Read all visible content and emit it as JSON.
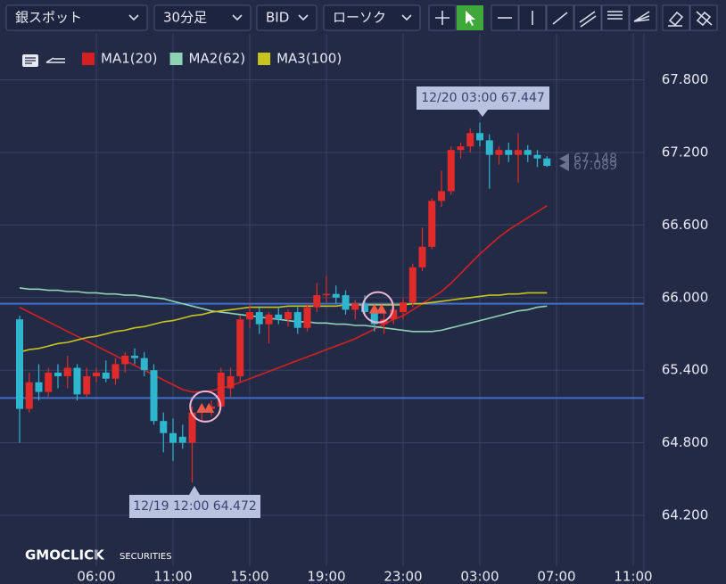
{
  "toolbar": {
    "symbol": "銀スポット",
    "interval": "30分足",
    "side": "BID",
    "chart_style": "ローソク"
  },
  "chart_data": {
    "type": "candlestick",
    "categories": [
      null,
      null,
      null,
      null,
      null,
      null,
      null,
      null,
      "06:00",
      null,
      null,
      null,
      null,
      null,
      null,
      null,
      "11:00",
      null,
      null,
      null,
      null,
      null,
      null,
      null,
      "15:00",
      null,
      null,
      null,
      null,
      null,
      null,
      null,
      "19:00",
      null,
      null,
      null,
      null,
      null,
      null,
      null,
      "23:00",
      null,
      null,
      null,
      null,
      null,
      null,
      null,
      "03:00",
      null,
      null,
      null,
      null,
      null,
      null,
      null,
      "07:00",
      null,
      null,
      null,
      null,
      null,
      null,
      null,
      "11:00"
    ],
    "open": [
      65.82,
      65.08,
      65.3,
      65.22,
      65.38,
      65.35,
      65.42,
      65.2,
      65.35,
      65.38,
      65.33,
      65.45,
      65.52,
      65.5,
      65.4,
      64.98,
      64.88,
      64.85,
      64.8,
      65.05,
      65.08,
      65.1,
      65.25,
      65.35,
      65.82,
      65.88,
      65.78,
      65.86,
      65.82,
      65.88,
      65.75,
      65.92,
      66.02,
      66.03,
      66.02,
      65.9,
      65.95,
      65.88,
      65.78,
      65.82,
      65.88,
      65.96,
      66.25,
      66.42,
      66.8,
      66.88,
      67.22,
      67.25,
      67.36,
      67.3,
      67.18,
      67.22,
      67.18,
      67.22,
      67.18,
      67.15,
      null,
      null,
      null,
      null,
      null,
      null,
      null,
      null,
      null
    ],
    "high": [
      65.85,
      65.38,
      65.45,
      65.42,
      65.45,
      65.52,
      65.45,
      65.42,
      65.42,
      65.48,
      65.5,
      65.55,
      65.58,
      65.55,
      65.45,
      65.05,
      65.0,
      64.95,
      65.1,
      65.12,
      65.15,
      65.42,
      65.42,
      65.85,
      65.95,
      65.92,
      65.88,
      65.92,
      65.9,
      65.92,
      65.95,
      66.12,
      66.18,
      66.1,
      66.06,
      65.98,
      66.02,
      65.95,
      65.9,
      65.95,
      66.0,
      66.28,
      66.58,
      66.82,
      67.05,
      67.25,
      67.28,
      67.4,
      67.447,
      67.35,
      67.25,
      67.28,
      67.36,
      67.26,
      67.22,
      67.17,
      null,
      null,
      null,
      null,
      null,
      null,
      null,
      null,
      null
    ],
    "low": [
      64.8,
      65.05,
      65.15,
      65.18,
      65.25,
      65.25,
      65.15,
      65.18,
      65.3,
      65.3,
      65.28,
      65.38,
      65.45,
      65.35,
      64.95,
      64.72,
      64.65,
      64.75,
      64.472,
      64.98,
      65.02,
      65.08,
      65.18,
      65.3,
      65.75,
      65.7,
      65.62,
      65.78,
      65.76,
      65.7,
      65.72,
      65.88,
      65.96,
      65.95,
      65.86,
      65.82,
      65.85,
      65.72,
      65.7,
      65.78,
      65.82,
      65.92,
      66.22,
      66.4,
      66.75,
      66.85,
      67.15,
      67.2,
      67.25,
      66.9,
      67.1,
      67.12,
      66.95,
      67.12,
      67.08,
      67.08,
      null,
      null,
      null,
      null,
      null,
      null,
      null,
      null,
      null
    ],
    "close": [
      65.08,
      65.3,
      65.22,
      65.38,
      65.35,
      65.42,
      65.2,
      65.35,
      65.38,
      65.33,
      65.45,
      65.52,
      65.5,
      65.4,
      64.98,
      64.88,
      64.8,
      64.8,
      65.05,
      65.08,
      65.1,
      65.38,
      65.35,
      65.82,
      65.88,
      65.78,
      65.86,
      65.82,
      65.88,
      65.75,
      65.92,
      66.02,
      66.03,
      66.0,
      65.9,
      65.95,
      65.88,
      65.78,
      65.82,
      65.9,
      65.96,
      66.25,
      66.42,
      66.8,
      66.88,
      67.22,
      67.25,
      67.36,
      67.3,
      67.18,
      67.22,
      67.18,
      67.22,
      67.18,
      67.15,
      67.089,
      null,
      null,
      null,
      null,
      null,
      null,
      null,
      null,
      null
    ],
    "up_color": "#e12a2a",
    "down_color": "#2fb6cf",
    "series": [
      {
        "name": "MA1(20)",
        "color": "#d42020",
        "values": [
          65.92,
          65.88,
          65.84,
          65.8,
          65.76,
          65.72,
          65.68,
          65.64,
          65.6,
          65.56,
          65.52,
          65.48,
          65.44,
          65.4,
          65.36,
          65.32,
          65.28,
          65.24,
          65.22,
          65.22,
          65.23,
          65.25,
          65.27,
          65.3,
          65.33,
          65.36,
          65.39,
          65.42,
          65.45,
          65.48,
          65.51,
          65.54,
          65.57,
          65.6,
          65.63,
          65.66,
          65.7,
          65.74,
          65.78,
          65.82,
          65.85,
          65.9,
          65.95,
          66.0,
          66.05,
          66.12,
          66.2,
          66.28,
          66.36,
          66.43,
          66.5,
          66.56,
          66.61,
          66.66,
          66.71,
          66.76,
          null,
          null,
          null,
          null,
          null,
          null,
          null,
          null,
          null
        ]
      },
      {
        "name": "MA2(62)",
        "color": "#8fd3b5",
        "values": [
          66.08,
          66.07,
          66.07,
          66.06,
          66.06,
          66.05,
          66.05,
          66.04,
          66.04,
          66.03,
          66.03,
          66.02,
          66.02,
          66.01,
          66.0,
          65.99,
          65.97,
          65.95,
          65.93,
          65.91,
          65.89,
          65.88,
          65.87,
          65.86,
          65.85,
          65.84,
          65.83,
          65.82,
          65.81,
          65.8,
          65.8,
          65.79,
          65.79,
          65.78,
          65.78,
          65.77,
          65.77,
          65.76,
          65.75,
          65.74,
          65.73,
          65.72,
          65.72,
          65.72,
          65.73,
          65.75,
          65.77,
          65.79,
          65.81,
          65.83,
          65.85,
          65.87,
          65.89,
          65.9,
          65.92,
          65.93,
          null,
          null,
          null,
          null,
          null,
          null,
          null,
          null,
          null
        ]
      },
      {
        "name": "MA3(100)",
        "color": "#c8c41e",
        "values": [
          65.55,
          65.57,
          65.58,
          65.6,
          65.62,
          65.63,
          65.65,
          65.67,
          65.68,
          65.7,
          65.72,
          65.73,
          65.75,
          65.76,
          65.78,
          65.8,
          65.81,
          65.83,
          65.85,
          65.86,
          65.88,
          65.89,
          65.9,
          65.91,
          65.92,
          65.92,
          65.92,
          65.92,
          65.93,
          65.93,
          65.93,
          65.93,
          65.93,
          65.93,
          65.94,
          65.94,
          65.94,
          65.94,
          65.94,
          65.94,
          65.94,
          65.95,
          65.95,
          65.96,
          65.97,
          65.98,
          65.99,
          66.0,
          66.01,
          66.02,
          66.02,
          66.03,
          66.03,
          66.04,
          66.04,
          66.04,
          null,
          null,
          null,
          null,
          null,
          null,
          null,
          null,
          null
        ]
      }
    ],
    "ylim": [
      63.78,
      68.18
    ],
    "yticks": [
      {
        "value": 64.2,
        "label": "64.200"
      },
      {
        "value": 64.8,
        "label": "64.800"
      },
      {
        "value": 65.4,
        "label": "65.400"
      },
      {
        "value": 66.0,
        "label": "66.000"
      },
      {
        "value": 66.6,
        "label": "66.600"
      },
      {
        "value": 67.2,
        "label": "67.200"
      },
      {
        "value": 67.8,
        "label": "67.800"
      }
    ],
    "grid": true,
    "hlines": [
      65.95,
      65.17
    ],
    "hline_color": "#3f6fc8",
    "signals": [
      {
        "index": 19,
        "value": 65.1
      },
      {
        "index": 37,
        "value": 65.92
      }
    ],
    "price_tags": [
      67.148,
      67.089
    ],
    "annotations": [
      {
        "text": "12/20 03:00 67.447"
      },
      {
        "text": "12/19 12:00 64.472"
      }
    ]
  },
  "footer": {
    "brand": "GMOCLICK",
    "suffix": "SECURITIES"
  }
}
